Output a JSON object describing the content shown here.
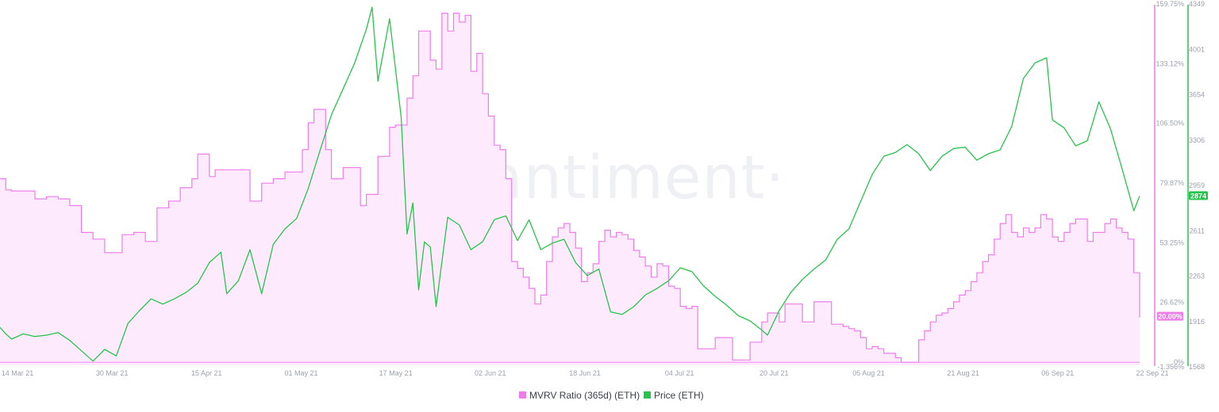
{
  "watermark": "·santiment·",
  "colors": {
    "mvrv": "#ee7cea",
    "mvrv_fill": "#fdeafc",
    "price": "#26c44b",
    "axis_text": "#9aa1ad"
  },
  "chart_data": {
    "type": "line",
    "x_ticks": [
      "14 Mar 21",
      "30 Mar 21",
      "15 Apr 21",
      "01 May 21",
      "17 May 21",
      "02 Jun 21",
      "18 Jun 21",
      "04 Jul 21",
      "20 Jul 21",
      "05 Aug 21",
      "21 Aug 21",
      "06 Sep 21",
      "22 Sep 21"
    ],
    "x_range": [
      "2021-03-10",
      "2021-09-22"
    ],
    "axes": {
      "mvrv": {
        "side": "right-inner",
        "ticks": [
          "159.75%",
          "133.12%",
          "106.50%",
          "79.87%",
          "53.25%",
          "26.62%",
          "0%",
          "-1.356%"
        ],
        "ylim": [
          -1.356,
          159.75
        ],
        "unit": "%"
      },
      "price": {
        "side": "right-outer",
        "ticks": [
          "4349",
          "4001",
          "3654",
          "3306",
          "2959",
          "2611",
          "2263",
          "1916",
          "1568"
        ],
        "ylim": [
          1568,
          4349
        ]
      }
    },
    "last_value_badges": {
      "mvrv": "20.00%",
      "price": "2874"
    },
    "series": [
      {
        "name": "MVRV Ratio (365d) (ETH)",
        "axis": "mvrv",
        "style": "area",
        "points": [
          [
            "2021-03-10",
            82
          ],
          [
            "2021-03-11",
            77
          ],
          [
            "2021-03-12",
            76.5
          ],
          [
            "2021-03-14",
            76.5
          ],
          [
            "2021-03-16",
            73
          ],
          [
            "2021-03-18",
            74
          ],
          [
            "2021-03-20",
            73
          ],
          [
            "2021-03-22",
            70
          ],
          [
            "2021-03-24",
            58
          ],
          [
            "2021-03-26",
            55
          ],
          [
            "2021-03-28",
            49
          ],
          [
            "2021-03-30",
            49
          ],
          [
            "2021-03-31",
            57
          ],
          [
            "2021-04-02",
            58
          ],
          [
            "2021-04-04",
            54
          ],
          [
            "2021-04-06",
            69
          ],
          [
            "2021-04-08",
            72
          ],
          [
            "2021-04-10",
            78
          ],
          [
            "2021-04-12",
            82
          ],
          [
            "2021-04-13",
            93
          ],
          [
            "2021-04-15",
            83
          ],
          [
            "2021-04-16",
            86
          ],
          [
            "2021-04-20",
            86
          ],
          [
            "2021-04-22",
            72
          ],
          [
            "2021-04-24",
            80
          ],
          [
            "2021-04-26",
            82
          ],
          [
            "2021-04-28",
            85
          ],
          [
            "2021-04-30",
            85
          ],
          [
            "2021-05-01",
            95
          ],
          [
            "2021-05-02",
            107
          ],
          [
            "2021-05-03",
            113
          ],
          [
            "2021-05-05",
            95
          ],
          [
            "2021-05-06",
            82
          ],
          [
            "2021-05-08",
            87
          ],
          [
            "2021-05-10",
            87
          ],
          [
            "2021-05-11",
            70
          ],
          [
            "2021-05-12",
            75
          ],
          [
            "2021-05-14",
            92
          ],
          [
            "2021-05-16",
            105
          ],
          [
            "2021-05-17",
            106
          ],
          [
            "2021-05-19",
            118
          ],
          [
            "2021-05-20",
            128
          ],
          [
            "2021-05-21",
            148
          ],
          [
            "2021-05-22",
            148
          ],
          [
            "2021-05-23",
            135
          ],
          [
            "2021-05-24",
            131
          ],
          [
            "2021-05-25",
            156
          ],
          [
            "2021-05-26",
            148
          ],
          [
            "2021-05-27",
            156
          ],
          [
            "2021-05-28",
            152
          ],
          [
            "2021-05-29",
            155
          ],
          [
            "2021-05-30",
            130
          ],
          [
            "2021-05-31",
            138
          ],
          [
            "2021-06-01",
            120
          ],
          [
            "2021-06-02",
            110
          ],
          [
            "2021-06-03",
            97
          ],
          [
            "2021-06-04",
            95
          ],
          [
            "2021-06-05",
            82
          ],
          [
            "2021-06-06",
            45
          ],
          [
            "2021-06-07",
            42
          ],
          [
            "2021-06-08",
            38
          ],
          [
            "2021-06-09",
            33
          ],
          [
            "2021-06-10",
            26
          ],
          [
            "2021-06-11",
            30
          ],
          [
            "2021-06-12",
            45
          ],
          [
            "2021-06-13",
            56
          ],
          [
            "2021-06-14",
            60
          ],
          [
            "2021-06-15",
            62
          ],
          [
            "2021-06-16",
            58
          ],
          [
            "2021-06-17",
            51
          ],
          [
            "2021-06-18",
            36
          ],
          [
            "2021-06-19",
            40
          ],
          [
            "2021-06-20",
            44
          ],
          [
            "2021-06-21",
            54
          ],
          [
            "2021-06-22",
            59
          ],
          [
            "2021-06-23",
            56
          ],
          [
            "2021-06-24",
            58
          ],
          [
            "2021-06-25",
            57
          ],
          [
            "2021-06-26",
            55
          ],
          [
            "2021-06-27",
            50
          ],
          [
            "2021-06-28",
            47
          ],
          [
            "2021-06-29",
            43
          ],
          [
            "2021-06-30",
            38
          ],
          [
            "2021-07-01",
            44
          ],
          [
            "2021-07-02",
            43
          ],
          [
            "2021-07-03",
            34
          ],
          [
            "2021-07-04",
            33
          ],
          [
            "2021-07-05",
            25
          ],
          [
            "2021-07-06",
            24
          ],
          [
            "2021-07-07",
            25
          ],
          [
            "2021-07-08",
            6
          ],
          [
            "2021-07-10",
            6
          ],
          [
            "2021-07-11",
            11
          ],
          [
            "2021-07-13",
            11
          ],
          [
            "2021-07-14",
            1
          ],
          [
            "2021-07-16",
            1
          ],
          [
            "2021-07-17",
            9
          ],
          [
            "2021-07-19",
            18
          ],
          [
            "2021-07-20",
            22
          ],
          [
            "2021-07-22",
            18
          ],
          [
            "2021-07-23",
            26
          ],
          [
            "2021-07-25",
            26
          ],
          [
            "2021-07-26",
            18
          ],
          [
            "2021-07-28",
            27
          ],
          [
            "2021-07-30",
            27
          ],
          [
            "2021-07-31",
            17
          ],
          [
            "2021-08-01",
            17
          ],
          [
            "2021-08-02",
            16
          ],
          [
            "2021-08-03",
            15
          ],
          [
            "2021-08-04",
            14
          ],
          [
            "2021-08-05",
            11
          ],
          [
            "2021-08-06",
            6
          ],
          [
            "2021-08-07",
            7
          ],
          [
            "2021-08-08",
            6
          ],
          [
            "2021-08-09",
            4
          ],
          [
            "2021-08-10",
            4
          ],
          [
            "2021-08-11",
            2
          ],
          [
            "2021-08-12",
            0
          ],
          [
            "2021-08-13",
            0
          ],
          [
            "2021-08-15",
            10
          ],
          [
            "2021-08-16",
            14
          ],
          [
            "2021-08-17",
            18
          ],
          [
            "2021-08-18",
            21
          ],
          [
            "2021-08-19",
            22
          ],
          [
            "2021-08-20",
            24
          ],
          [
            "2021-08-21",
            27
          ],
          [
            "2021-08-22",
            30
          ],
          [
            "2021-08-23",
            32
          ],
          [
            "2021-08-24",
            36
          ],
          [
            "2021-08-25",
            40
          ],
          [
            "2021-08-26",
            45
          ],
          [
            "2021-08-27",
            48
          ],
          [
            "2021-08-28",
            55
          ],
          [
            "2021-08-29",
            62
          ],
          [
            "2021-08-30",
            66
          ],
          [
            "2021-08-31",
            58
          ],
          [
            "2021-09-01",
            56
          ],
          [
            "2021-09-02",
            60
          ],
          [
            "2021-09-03",
            58
          ],
          [
            "2021-09-04",
            60
          ],
          [
            "2021-09-05",
            66
          ],
          [
            "2021-09-06",
            64
          ],
          [
            "2021-09-07",
            56
          ],
          [
            "2021-09-08",
            54
          ],
          [
            "2021-09-09",
            58
          ],
          [
            "2021-09-10",
            62
          ],
          [
            "2021-09-11",
            64
          ],
          [
            "2021-09-12",
            64
          ],
          [
            "2021-09-13",
            54
          ],
          [
            "2021-09-14",
            58
          ],
          [
            "2021-09-15",
            58
          ],
          [
            "2021-09-16",
            62
          ],
          [
            "2021-09-17",
            64
          ],
          [
            "2021-09-18",
            60
          ],
          [
            "2021-09-19",
            58
          ],
          [
            "2021-09-20",
            55
          ],
          [
            "2021-09-21",
            40
          ],
          [
            "2021-09-22",
            20
          ]
        ]
      },
      {
        "name": "Price (ETH)",
        "axis": "price",
        "style": "line",
        "points": [
          [
            "2021-03-10",
            1860
          ],
          [
            "2021-03-11",
            1810
          ],
          [
            "2021-03-12",
            1770
          ],
          [
            "2021-03-14",
            1810
          ],
          [
            "2021-03-16",
            1790
          ],
          [
            "2021-03-18",
            1800
          ],
          [
            "2021-03-20",
            1820
          ],
          [
            "2021-03-22",
            1760
          ],
          [
            "2021-03-24",
            1680
          ],
          [
            "2021-03-26",
            1600
          ],
          [
            "2021-03-28",
            1690
          ],
          [
            "2021-03-30",
            1640
          ],
          [
            "2021-04-01",
            1890
          ],
          [
            "2021-04-03",
            1990
          ],
          [
            "2021-04-05",
            2080
          ],
          [
            "2021-04-07",
            2040
          ],
          [
            "2021-04-09",
            2080
          ],
          [
            "2021-04-11",
            2130
          ],
          [
            "2021-04-13",
            2200
          ],
          [
            "2021-04-15",
            2360
          ],
          [
            "2021-04-17",
            2440
          ],
          [
            "2021-04-18",
            2120
          ],
          [
            "2021-04-20",
            2220
          ],
          [
            "2021-04-22",
            2460
          ],
          [
            "2021-04-24",
            2120
          ],
          [
            "2021-04-26",
            2500
          ],
          [
            "2021-04-28",
            2620
          ],
          [
            "2021-04-30",
            2700
          ],
          [
            "2021-05-02",
            2930
          ],
          [
            "2021-05-04",
            3220
          ],
          [
            "2021-05-06",
            3500
          ],
          [
            "2021-05-08",
            3700
          ],
          [
            "2021-05-10",
            3900
          ],
          [
            "2021-05-12",
            4160
          ],
          [
            "2021-05-13",
            4330
          ],
          [
            "2021-05-14",
            3760
          ],
          [
            "2021-05-16",
            4240
          ],
          [
            "2021-05-18",
            3480
          ],
          [
            "2021-05-19",
            2580
          ],
          [
            "2021-05-20",
            2820
          ],
          [
            "2021-05-21",
            2150
          ],
          [
            "2021-05-22",
            2520
          ],
          [
            "2021-05-23",
            2480
          ],
          [
            "2021-05-24",
            2020
          ],
          [
            "2021-05-26",
            2710
          ],
          [
            "2021-05-28",
            2650
          ],
          [
            "2021-05-30",
            2460
          ],
          [
            "2021-06-01",
            2520
          ],
          [
            "2021-06-03",
            2690
          ],
          [
            "2021-06-05",
            2720
          ],
          [
            "2021-06-07",
            2530
          ],
          [
            "2021-06-09",
            2690
          ],
          [
            "2021-06-11",
            2460
          ],
          [
            "2021-06-13",
            2510
          ],
          [
            "2021-06-15",
            2540
          ],
          [
            "2021-06-17",
            2360
          ],
          [
            "2021-06-19",
            2260
          ],
          [
            "2021-06-21",
            2310
          ],
          [
            "2021-06-23",
            1980
          ],
          [
            "2021-06-25",
            1960
          ],
          [
            "2021-06-27",
            2020
          ],
          [
            "2021-06-29",
            2110
          ],
          [
            "2021-07-01",
            2160
          ],
          [
            "2021-07-03",
            2220
          ],
          [
            "2021-07-05",
            2320
          ],
          [
            "2021-07-07",
            2290
          ],
          [
            "2021-07-09",
            2180
          ],
          [
            "2021-07-11",
            2100
          ],
          [
            "2021-07-13",
            2030
          ],
          [
            "2021-07-15",
            1950
          ],
          [
            "2021-07-17",
            1910
          ],
          [
            "2021-07-19",
            1840
          ],
          [
            "2021-07-20",
            1800
          ],
          [
            "2021-07-22",
            1990
          ],
          [
            "2021-07-24",
            2130
          ],
          [
            "2021-07-26",
            2230
          ],
          [
            "2021-07-28",
            2310
          ],
          [
            "2021-07-30",
            2380
          ],
          [
            "2021-08-01",
            2540
          ],
          [
            "2021-08-03",
            2620
          ],
          [
            "2021-08-05",
            2830
          ],
          [
            "2021-08-07",
            3040
          ],
          [
            "2021-08-09",
            3180
          ],
          [
            "2021-08-11",
            3210
          ],
          [
            "2021-08-13",
            3270
          ],
          [
            "2021-08-15",
            3200
          ],
          [
            "2021-08-17",
            3070
          ],
          [
            "2021-08-19",
            3180
          ],
          [
            "2021-08-21",
            3240
          ],
          [
            "2021-08-23",
            3250
          ],
          [
            "2021-08-25",
            3150
          ],
          [
            "2021-08-27",
            3200
          ],
          [
            "2021-08-29",
            3230
          ],
          [
            "2021-08-31",
            3410
          ],
          [
            "2021-09-02",
            3780
          ],
          [
            "2021-09-04",
            3900
          ],
          [
            "2021-09-06",
            3940
          ],
          [
            "2021-09-07",
            3460
          ],
          [
            "2021-09-09",
            3400
          ],
          [
            "2021-09-11",
            3260
          ],
          [
            "2021-09-13",
            3300
          ],
          [
            "2021-09-15",
            3600
          ],
          [
            "2021-09-17",
            3390
          ],
          [
            "2021-09-19",
            3080
          ],
          [
            "2021-09-21",
            2760
          ],
          [
            "2021-09-22",
            2874
          ]
        ]
      }
    ]
  }
}
